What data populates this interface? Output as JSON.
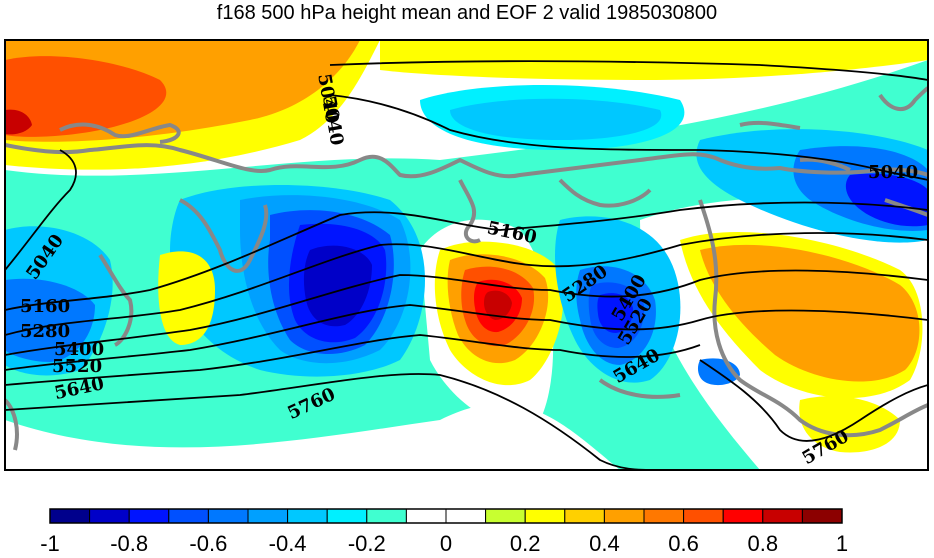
{
  "title": "f168 500 hPa height mean and EOF 2 valid 1985030800",
  "contour_labels": [
    "5040",
    "5040",
    "5040",
    "5160",
    "5160",
    "5280",
    "5280",
    "5400",
    "5400",
    "5520",
    "5520",
    "5640",
    "5640",
    "5760",
    "5760"
  ],
  "colorbar": {
    "colors": [
      "#00008c",
      "#0000c8",
      "#0014ff",
      "#0050ff",
      "#0078ff",
      "#00a0ff",
      "#00c8ff",
      "#00f0ff",
      "#40ffd0",
      "#ffffff",
      "#ffffff",
      "#c8ff30",
      "#ffff00",
      "#ffd000",
      "#ffa000",
      "#ff7800",
      "#ff5000",
      "#ff0000",
      "#c80000",
      "#8c0000"
    ],
    "tick_labels": [
      "-1",
      "-0.8",
      "-0.6",
      "-0.4",
      "-0.2",
      "0",
      "0.2",
      "0.4",
      "0.6",
      "0.8",
      "1"
    ]
  }
}
